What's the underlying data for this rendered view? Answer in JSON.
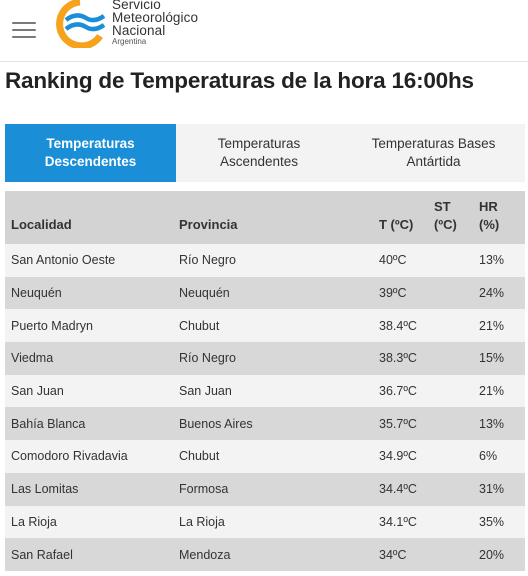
{
  "header": {
    "logo_line1": "Servicio",
    "logo_line2": "Meteorológico",
    "logo_line3": "Nacional",
    "logo_line4": "Argentina",
    "menu_icon": "hamburger-icon",
    "colors": {
      "logo_orange": "#f6a21d",
      "logo_blue": "#1a8fd8"
    }
  },
  "page": {
    "title": "Ranking de Temperaturas de la hora 16:00hs"
  },
  "tabs": [
    {
      "line1": "Temperaturas",
      "line2": "Descendentes",
      "active": true
    },
    {
      "line1": "Temperaturas",
      "line2": "Ascendentes",
      "active": false
    },
    {
      "line1": "Temperaturas Bases",
      "line2": "Antártida",
      "active": false
    }
  ],
  "table": {
    "headers": {
      "localidad": "Localidad",
      "provincia": "Provincia",
      "t_line1": "T (ºC)",
      "st_line1": "ST",
      "st_line2": "(ºC)",
      "hr_line1": "HR",
      "hr_line2": "(%)"
    },
    "rows": [
      {
        "localidad": "San Antonio Oeste",
        "provincia": "Río Negro",
        "t": "40ºC",
        "st": "",
        "hr": "13%"
      },
      {
        "localidad": "Neuquén",
        "provincia": "Neuquén",
        "t": "39ºC",
        "st": "",
        "hr": "24%"
      },
      {
        "localidad": "Puerto Madryn",
        "provincia": "Chubut",
        "t": "38.4ºC",
        "st": "",
        "hr": "21%"
      },
      {
        "localidad": "Viedma",
        "provincia": "Río Negro",
        "t": "38.3ºC",
        "st": "",
        "hr": "15%"
      },
      {
        "localidad": "San Juan",
        "provincia": "San Juan",
        "t": "36.7ºC",
        "st": "",
        "hr": "21%"
      },
      {
        "localidad": "Bahía Blanca",
        "provincia": "Buenos Aires",
        "t": "35.7ºC",
        "st": "",
        "hr": "13%"
      },
      {
        "localidad": "Comodoro Rivadavia",
        "provincia": "Chubut",
        "t": "34.9ºC",
        "st": "",
        "hr": "6%"
      },
      {
        "localidad": "Las Lomitas",
        "provincia": "Formosa",
        "t": "34.4ºC",
        "st": "",
        "hr": "31%"
      },
      {
        "localidad": "La Rioja",
        "provincia": "La Rioja",
        "t": "34.1ºC",
        "st": "",
        "hr": "35%"
      },
      {
        "localidad": "San Rafael",
        "provincia": "Mendoza",
        "t": "34ºC",
        "st": "",
        "hr": "20%"
      }
    ]
  }
}
